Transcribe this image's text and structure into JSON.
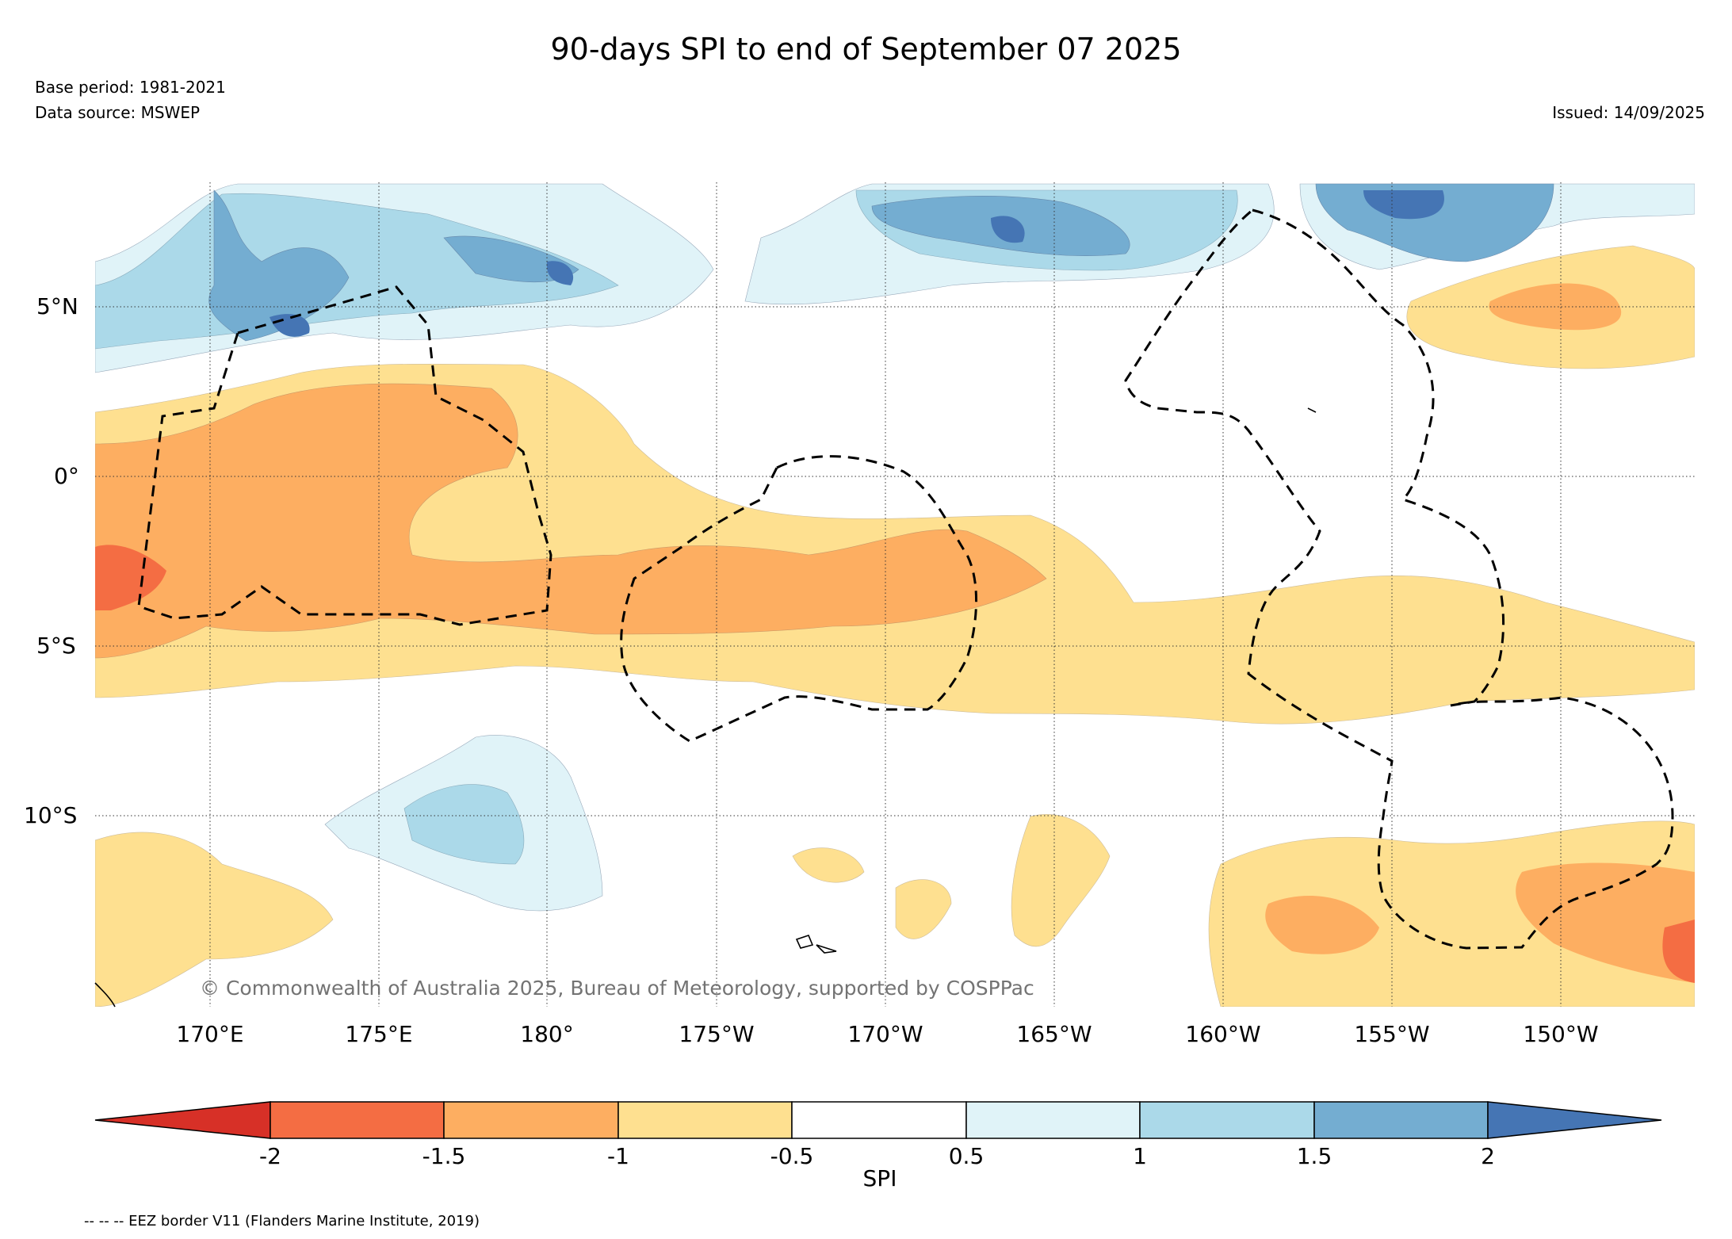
{
  "header": {
    "title": "90-days SPI to end of September 07 2025",
    "base_period": "Base period: 1981-2021",
    "data_source": "Data source: MSWEP",
    "issued": "Issued: 14/09/2025"
  },
  "map": {
    "copyright": "© Commonwealth of Australia 2025, Bureau of Meteorology, supported by COSPPac",
    "lat_labels": [
      "5°N",
      "0°",
      "5°S",
      "10°S"
    ],
    "lon_labels": [
      "170°E",
      "175°E",
      "180°",
      "175°W",
      "170°W",
      "165°W",
      "160°W",
      "155°W",
      "150°W"
    ],
    "border_style": "dashed",
    "spi_colors": {
      "below_-2": "#d73027",
      "-2_to_-1.5": "#f46d43",
      "-1.5_to_-1": "#fdae61",
      "-1_to_-0.5": "#fee090",
      "-0.5_to_0.5": "#ffffff",
      "0.5_to_1": "#e0f3f8",
      "1_to_1.5": "#abd9e9",
      "1.5_to_2": "#74add1",
      "above_2": "#4575b4"
    }
  },
  "colorbar": {
    "label": "SPI",
    "ticks": [
      "-2",
      "-1.5",
      "-1",
      "-0.5",
      "0.5",
      "1",
      "1.5",
      "2"
    ],
    "colors": [
      "#d73027",
      "#f46d43",
      "#fdae61",
      "#fee090",
      "#ffffff",
      "#e0f3f8",
      "#abd9e9",
      "#74add1",
      "#4575b4"
    ]
  },
  "footer": {
    "eez_note": "-- -- -- EEZ border V11 (Flanders Marine Institute, 2019)"
  }
}
